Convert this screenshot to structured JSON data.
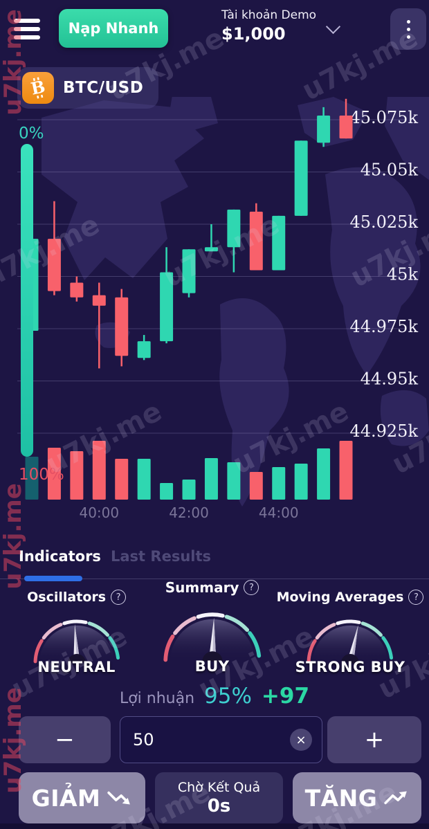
{
  "header": {
    "deposit_button": "Nạp Nhanh",
    "account_label": "Tài khoản Demo",
    "balance": "$1,000"
  },
  "pair": {
    "label": "BTC/USD",
    "icon": "bitcoin-icon",
    "icon_letter": "B"
  },
  "chart_data": {
    "type": "candlestick",
    "symbol": "BTC/USD",
    "y_axis": [
      {
        "label": "45.075k",
        "value": 45.075
      },
      {
        "label": "45.05k",
        "value": 45.05
      },
      {
        "label": "45.025k",
        "value": 45.025
      },
      {
        "label": "45k",
        "value": 45.0
      },
      {
        "label": "44.975k",
        "value": 44.975
      },
      {
        "label": "44.95k",
        "value": 44.95
      },
      {
        "label": "44.925k",
        "value": 44.925
      }
    ],
    "x_axis": [
      {
        "label": "40:00",
        "candle_index": 3
      },
      {
        "label": "42:00",
        "candle_index": 7
      },
      {
        "label": "44:00",
        "candle_index": 11
      }
    ],
    "candles": [
      {
        "open": 44.974,
        "high": 45.018,
        "low": 44.974,
        "close": 45.018
      },
      {
        "open": 45.018,
        "high": 45.036,
        "low": 44.991,
        "close": 44.993
      },
      {
        "open": 44.997,
        "high": 45.0,
        "low": 44.988,
        "close": 44.99
      },
      {
        "open": 44.991,
        "high": 44.997,
        "low": 44.956,
        "close": 44.986
      },
      {
        "open": 44.99,
        "high": 44.994,
        "low": 44.957,
        "close": 44.962
      },
      {
        "open": 44.961,
        "high": 44.972,
        "low": 44.96,
        "close": 44.969
      },
      {
        "open": 44.969,
        "high": 45.014,
        "low": 44.968,
        "close": 45.002
      },
      {
        "open": 44.992,
        "high": 45.013,
        "low": 44.99,
        "close": 45.013
      },
      {
        "open": 45.012,
        "high": 45.025,
        "low": 45.012,
        "close": 45.014
      },
      {
        "open": 45.014,
        "high": 45.032,
        "low": 45.002,
        "close": 45.032
      },
      {
        "open": 45.031,
        "high": 45.035,
        "low": 45.003,
        "close": 45.003
      },
      {
        "open": 45.003,
        "high": 45.029,
        "low": 45.003,
        "close": 45.029
      },
      {
        "open": 45.029,
        "high": 45.065,
        "low": 45.029,
        "close": 45.065
      },
      {
        "open": 45.064,
        "high": 45.081,
        "low": 45.062,
        "close": 45.077
      },
      {
        "open": 45.077,
        "high": 45.085,
        "low": 45.066,
        "close": 45.066
      }
    ],
    "volumes": [
      62,
      75,
      70,
      85,
      59,
      59,
      24,
      29,
      60,
      54,
      40,
      47,
      52,
      74,
      85
    ],
    "sentiment_bar": {
      "top_label": "0%",
      "bottom_label": "100%"
    }
  },
  "tabs": [
    {
      "label": "Indicators",
      "active": true
    },
    {
      "label": "Last Results",
      "active": false
    }
  ],
  "gauges": [
    {
      "title": "Oscillators",
      "value": "NEUTRAL",
      "needle_angle": -3
    },
    {
      "title": "Summary",
      "value": "BUY",
      "needle_angle": 2
    },
    {
      "title": "Moving Averages",
      "value": "STRONG BUY",
      "needle_angle": 12
    }
  ],
  "misc": {
    "help_glyph": "?"
  },
  "profit": {
    "label": "Lợi nhuận",
    "percent": "95%",
    "bonus": "+97"
  },
  "amount": {
    "value": "50",
    "minus_glyph": "−",
    "plus_glyph": "+",
    "clear_glyph": "×"
  },
  "actions": {
    "down_label": "GIẢM",
    "status_line1": "Chờ Kết Quả",
    "status_line2": "0s",
    "up_label": "TĂNG"
  },
  "watermark": {
    "text": "u7kj.me"
  },
  "colors": {
    "up": "#2fd7b1",
    "down": "#f8616b",
    "muted_volume": "#15606e",
    "accent_blue": "#2e6fe6",
    "grid": "rgba(168,160,210,0.28)",
    "map": "#8a7ce0",
    "gauge_arc": [
      "#e25d74",
      "#e9bccf",
      "#f5f3fb",
      "#a5e2d4",
      "#3ccfba"
    ],
    "sentiment_top": "#3ae2bd",
    "sentiment_bottom": "#1ec0a4"
  }
}
